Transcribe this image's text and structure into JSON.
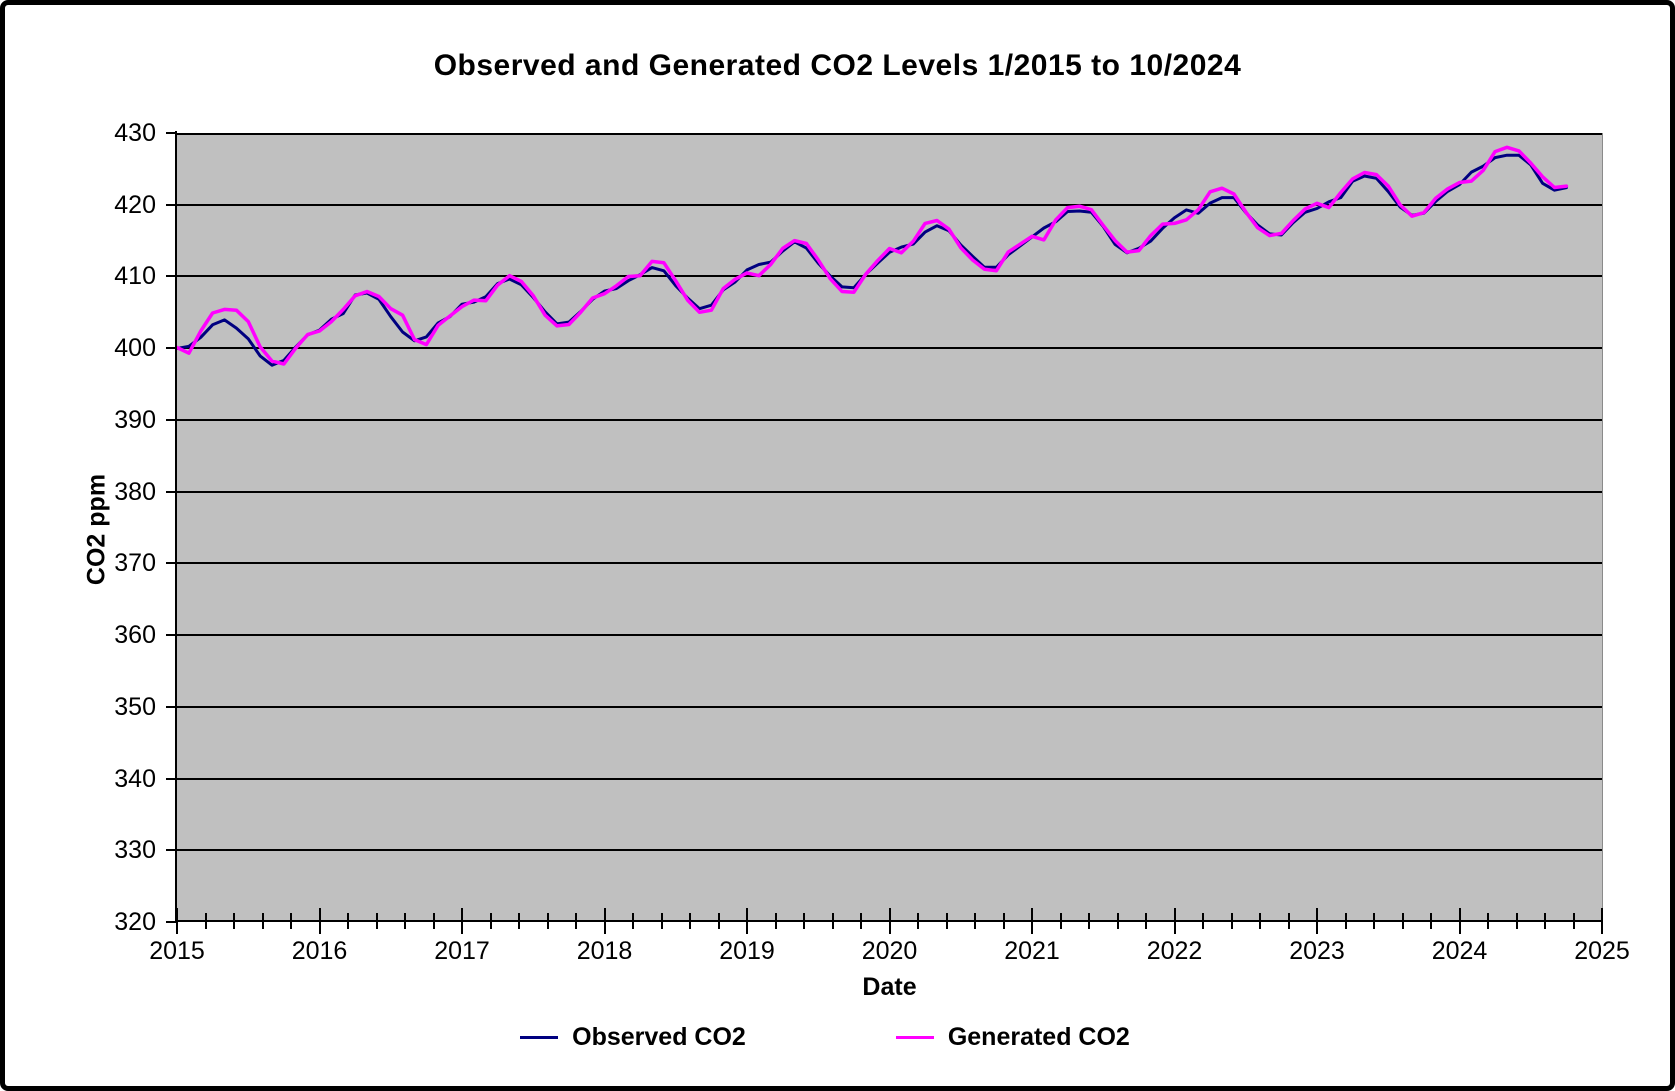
{
  "title": "Observed and Generated CO2 Levels 1/2015 to 10/2024",
  "axes": {
    "x_label": "Date",
    "y_label": "CO2 ppm"
  },
  "legend": [
    {
      "label": "Observed CO2",
      "color": "#000080"
    },
    {
      "label": "Generated CO2",
      "color": "#FF00FF"
    }
  ],
  "colors": {
    "plot_background": "#C0C0C0",
    "gridline": "#000000",
    "observed_line": "#000080",
    "generated_line": "#FF00FF",
    "frame_border": "#000000"
  },
  "chart_data": {
    "type": "line",
    "title": "Observed and Generated CO2 Levels 1/2015 to 10/2024",
    "xlabel": "Date",
    "ylabel": "CO2 ppm",
    "xlim": [
      2015,
      2025
    ],
    "ylim": [
      320,
      430
    ],
    "x_ticks": [
      2015,
      2016,
      2017,
      2018,
      2019,
      2020,
      2021,
      2022,
      2023,
      2024,
      2025
    ],
    "x_minor_tick_step": 0.2,
    "y_ticks": [
      320,
      330,
      340,
      350,
      360,
      370,
      380,
      390,
      400,
      410,
      420,
      430
    ],
    "grid": "horizontal-only",
    "legend_position": "bottom",
    "x_start": {
      "year": 2015,
      "month": 1
    },
    "x_end": {
      "year": 2024,
      "month": 10
    },
    "x_unit": "monthly",
    "series": [
      {
        "name": "Observed CO2",
        "color": "#000080",
        "values": [
          399.96,
          400.26,
          401.52,
          403.26,
          403.94,
          402.8,
          401.3,
          398.93,
          397.63,
          398.29,
          400.16,
          401.85,
          402.52,
          404.04,
          404.83,
          407.42,
          407.7,
          406.81,
          404.39,
          402.25,
          401.03,
          401.57,
          403.53,
          404.42,
          406.13,
          406.42,
          407.18,
          409.0,
          409.65,
          408.84,
          407.07,
          405.07,
          403.38,
          403.64,
          405.12,
          406.81,
          407.96,
          408.32,
          409.41,
          410.24,
          411.24,
          410.79,
          408.71,
          406.99,
          405.51,
          405.99,
          408.12,
          409.23,
          410.92,
          411.66,
          412.0,
          413.52,
          414.83,
          413.96,
          411.85,
          410.08,
          408.55,
          408.43,
          410.29,
          411.85,
          413.37,
          414.09,
          414.51,
          416.18,
          417.07,
          416.38,
          414.38,
          412.81,
          411.27,
          411.28,
          413.02,
          414.26,
          415.52,
          416.75,
          417.64,
          419.05,
          419.13,
          418.94,
          416.96,
          414.47,
          413.3,
          413.93,
          414.93,
          416.71,
          418.19,
          419.28,
          418.81,
          420.23,
          420.99,
          420.99,
          418.9,
          417.19,
          415.95,
          415.78,
          417.51,
          418.95,
          419.47,
          420.41,
          420.99,
          423.28,
          424.0,
          423.68,
          421.83,
          419.68,
          418.51,
          418.82,
          420.46,
          421.86,
          422.8,
          424.55,
          425.38,
          426.57,
          426.9,
          426.91,
          425.55,
          422.99,
          422.03,
          422.38
        ]
      },
      {
        "name": "Generated CO2",
        "color": "#FF00FF",
        "values": [
          400.1,
          399.3,
          402.4,
          404.9,
          405.4,
          405.3,
          403.7,
          400.2,
          398.2,
          397.8,
          400.0,
          401.9,
          402.4,
          403.7,
          405.4,
          407.3,
          407.9,
          407.2,
          405.5,
          404.6,
          401.2,
          400.5,
          403.2,
          404.5,
          405.8,
          406.7,
          406.6,
          408.8,
          410.1,
          409.3,
          407.3,
          404.6,
          403.1,
          403.3,
          405.0,
          407.0,
          407.6,
          408.7,
          410.0,
          410.1,
          412.1,
          411.9,
          409.4,
          406.7,
          405.0,
          405.3,
          408.3,
          409.6,
          410.5,
          410.1,
          411.7,
          413.9,
          415.0,
          414.6,
          412.3,
          409.7,
          407.9,
          407.8,
          410.3,
          412.2,
          413.9,
          413.3,
          414.9,
          417.4,
          417.8,
          416.6,
          414.0,
          412.3,
          411.0,
          410.8,
          413.4,
          414.5,
          415.6,
          415.1,
          417.9,
          419.6,
          419.8,
          419.3,
          417.1,
          415.0,
          413.4,
          413.6,
          415.7,
          417.3,
          417.4,
          417.9,
          419.3,
          421.8,
          422.3,
          421.5,
          419.0,
          416.8,
          415.7,
          416.0,
          417.8,
          419.4,
          420.2,
          419.6,
          421.7,
          423.6,
          424.5,
          424.2,
          422.6,
          420.0,
          418.4,
          418.9,
          420.9,
          422.2,
          423.1,
          423.3,
          424.8,
          427.4,
          428.0,
          427.5,
          425.8,
          423.9,
          422.4,
          422.6
        ]
      }
    ]
  }
}
